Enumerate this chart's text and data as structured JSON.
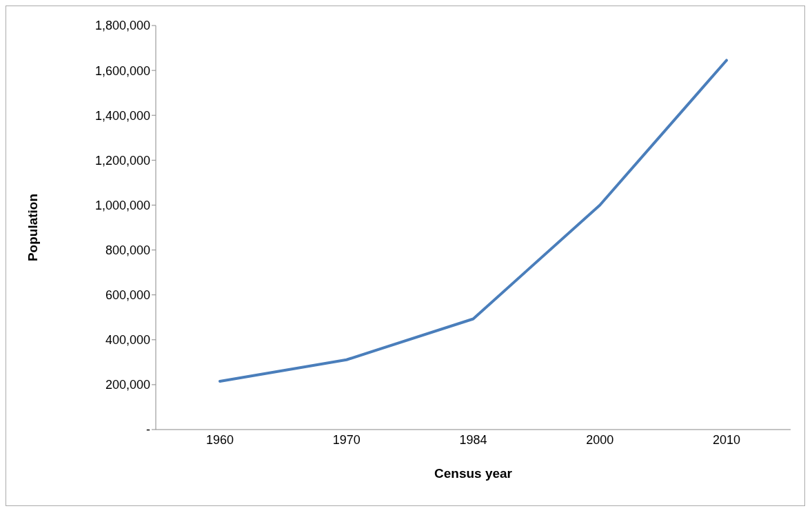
{
  "chart_data": {
    "type": "line",
    "xlabel": "Census year",
    "ylabel": "Population",
    "categories": [
      "1960",
      "1970",
      "1984",
      "2000",
      "2010"
    ],
    "series": [
      {
        "color": "#4a7ebb",
        "values": [
          215000,
          311000,
          493000,
          1000000,
          1645000
        ]
      }
    ],
    "ylim": [
      0,
      1800000
    ],
    "yticks": [
      {
        "value": 0,
        "label": "-"
      },
      {
        "value": 200000,
        "label": "200,000"
      },
      {
        "value": 400000,
        "label": "400,000"
      },
      {
        "value": 600000,
        "label": "600,000"
      },
      {
        "value": 800000,
        "label": "800,000"
      },
      {
        "value": 1000000,
        "label": "1,000,000"
      },
      {
        "value": 1200000,
        "label": "1,200,000"
      },
      {
        "value": 1400000,
        "label": "1,400,000"
      },
      {
        "value": 1600000,
        "label": "1,600,000"
      },
      {
        "value": 1800000,
        "label": "1,800,000"
      }
    ],
    "grid": false,
    "legend": false,
    "marker": "none",
    "line_style": "solid"
  }
}
